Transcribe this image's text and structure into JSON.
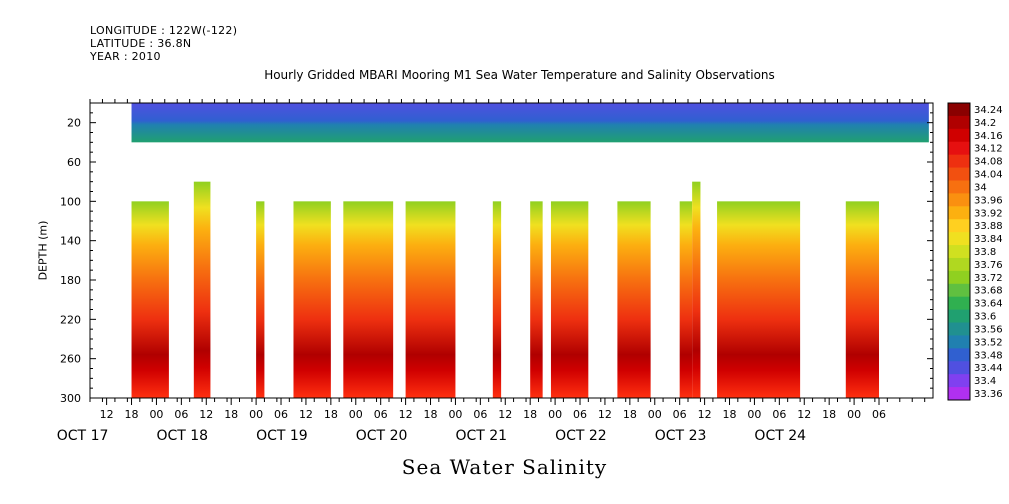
{
  "header": {
    "longitude": "LONGITUDE : 122W(-122)",
    "latitude": "LATITUDE : 36.8N",
    "year": "YEAR : 2010"
  },
  "chart_data": {
    "type": "heatmap",
    "title": "Hourly Gridded MBARI Mooring M1 Sea Water Temperature and Salinity Observations",
    "xlabel": "Sea Water Salinity",
    "ylabel": "DEPTH (m)",
    "x_range_hours": "2010-10-17 12:00 to 2010-10-24 23:00",
    "hour_tick_labels": [
      "12",
      "18",
      "00",
      "06",
      "12",
      "18",
      "00",
      "06",
      "12",
      "18",
      "00",
      "06",
      "12",
      "18",
      "00",
      "06",
      "12",
      "18",
      "00",
      "06",
      "12",
      "18",
      "00",
      "06",
      "12",
      "18",
      "00",
      "06",
      "12",
      "18",
      "00",
      "06"
    ],
    "hour_tick_values": [
      12,
      18,
      24,
      30,
      36,
      42,
      48,
      54,
      60,
      66,
      72,
      78,
      84,
      90,
      96,
      102,
      108,
      114,
      120,
      126,
      132,
      138,
      144,
      150,
      156,
      162,
      168,
      174,
      180,
      186,
      192,
      198
    ],
    "day_labels": [
      {
        "label": "OCT 17",
        "hour": 0
      },
      {
        "label": "OCT 18",
        "hour": 24
      },
      {
        "label": "OCT 19",
        "hour": 48
      },
      {
        "label": "OCT 20",
        "hour": 72
      },
      {
        "label": "OCT 21",
        "hour": 96
      },
      {
        "label": "OCT 22",
        "hour": 120
      },
      {
        "label": "OCT 23",
        "hour": 144
      },
      {
        "label": "OCT 24",
        "hour": 168
      }
    ],
    "x_axis_hours": [
      8,
      211
    ],
    "y_tick_labels": [
      "20",
      "60",
      "100",
      "140",
      "180",
      "220",
      "260",
      "300"
    ],
    "y_tick_values": [
      20,
      60,
      100,
      140,
      180,
      220,
      260,
      300
    ],
    "ylim": [
      300,
      0
    ],
    "colorbar_levels": [
      "34.24",
      "34.2",
      "34.16",
      "34.12",
      "34.08",
      "34.04",
      "34",
      "33.96",
      "33.92",
      "33.88",
      "33.84",
      "33.8",
      "33.76",
      "33.72",
      "33.68",
      "33.64",
      "33.6",
      "33.56",
      "33.52",
      "33.48",
      "33.44",
      "33.4",
      "33.36"
    ],
    "colorbar_colors": [
      "#8a0000",
      "#b00000",
      "#d00000",
      "#e61010",
      "#ee3010",
      "#f25010",
      "#f77010",
      "#fa9010",
      "#fcb010",
      "#ffd020",
      "#f0e020",
      "#d0e020",
      "#b0d820",
      "#90d020",
      "#60c040",
      "#30b050",
      "#20a070",
      "#209090",
      "#2080b0",
      "#3060d0",
      "#5050e0",
      "#8040f0",
      "#b030f0"
    ],
    "data_segments": [
      {
        "start_hour": 18,
        "end_hour": 27,
        "top_depth": 100,
        "max_salinity": 34.22
      },
      {
        "start_hour": 33,
        "end_hour": 37,
        "top_depth": 80,
        "max_salinity": 34.22
      },
      {
        "start_hour": 48,
        "end_hour": 50,
        "top_depth": 100,
        "max_salinity": 34.24
      },
      {
        "start_hour": 57,
        "end_hour": 66,
        "top_depth": 100,
        "max_salinity": 34.22
      },
      {
        "start_hour": 69,
        "end_hour": 81,
        "top_depth": 100,
        "max_salinity": 34.24
      },
      {
        "start_hour": 84,
        "end_hour": 96,
        "top_depth": 100,
        "max_salinity": 34.24
      },
      {
        "start_hour": 105,
        "end_hour": 107,
        "top_depth": 100,
        "max_salinity": 34.24
      },
      {
        "start_hour": 114,
        "end_hour": 117,
        "top_depth": 100,
        "max_salinity": 34.24
      },
      {
        "start_hour": 119,
        "end_hour": 128,
        "top_depth": 100,
        "max_salinity": 34.24
      },
      {
        "start_hour": 135,
        "end_hour": 143,
        "top_depth": 100,
        "max_salinity": 34.24
      },
      {
        "start_hour": 150,
        "end_hour": 153,
        "top_depth": 100,
        "max_salinity": 34.24
      },
      {
        "start_hour": 153,
        "end_hour": 155,
        "top_depth": 80,
        "max_salinity": 34.24
      },
      {
        "start_hour": 159,
        "end_hour": 179,
        "top_depth": 100,
        "max_salinity": 34.22
      },
      {
        "start_hour": 190,
        "end_hour": 198,
        "top_depth": 100,
        "max_salinity": 34.22
      }
    ],
    "surface_layer": {
      "top_depth": 0,
      "bottom_depth": 40,
      "start_hour": 18,
      "end_hour": 210
    }
  }
}
